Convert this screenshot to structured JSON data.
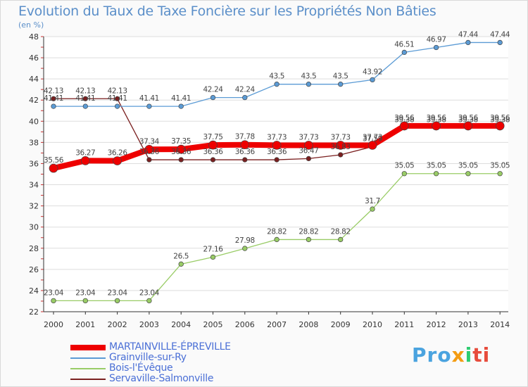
{
  "chart_data": {
    "type": "line",
    "title": "Evolution du Taux de Taxe Foncière sur les Propriétés Non Bâties",
    "ylabel": "(en %)",
    "ylim": [
      22,
      48
    ],
    "yticks": [
      22,
      24,
      26,
      28,
      30,
      32,
      34,
      36,
      38,
      40,
      42,
      44,
      46,
      48
    ],
    "categories": [
      "2000",
      "2001",
      "2002",
      "2003",
      "2004",
      "2005",
      "2006",
      "2007",
      "2008",
      "2009",
      "2010",
      "2011",
      "2012",
      "2013",
      "2014"
    ],
    "series": [
      {
        "name": "MARTAINVILLE-ÉPREVILLE",
        "color": "#ee0000",
        "values": [
          35.56,
          36.27,
          36.26,
          37.34,
          37.35,
          37.75,
          37.78,
          37.73,
          37.73,
          37.73,
          37.73,
          39.56,
          39.56,
          39.56,
          39.56
        ]
      },
      {
        "name": "Grainville-sur-Ry",
        "color": "#5b9bd5",
        "values": [
          41.41,
          41.41,
          41.41,
          41.41,
          41.41,
          42.24,
          42.24,
          43.5,
          43.5,
          43.5,
          43.92,
          46.51,
          46.97,
          47.44,
          47.44
        ]
      },
      {
        "name": "Bois-l'Évêque",
        "color": "#99cc66",
        "values": [
          23.04,
          23.04,
          23.04,
          23.04,
          26.5,
          27.16,
          27.98,
          28.82,
          28.82,
          28.82,
          31.7,
          35.05,
          35.05,
          35.05,
          35.05
        ]
      },
      {
        "name": "Servaville-Salmonville",
        "color": "#7a1f1f",
        "values": [
          42.13,
          42.13,
          42.13,
          36.36,
          36.36,
          36.36,
          36.36,
          36.36,
          36.47,
          36.83,
          37.59,
          39.38,
          39.38,
          39.38,
          39.38
        ]
      }
    ]
  },
  "legend": {
    "items": [
      "MARTAINVILLE-ÉPREVILLE",
      "Grainville-sur-Ry",
      "Bois-l'Évêque",
      "Servaville-Salmonville"
    ]
  },
  "logo": {
    "p1": "Pro",
    "p2": "x",
    "p3": "i",
    "p4": "ti"
  }
}
